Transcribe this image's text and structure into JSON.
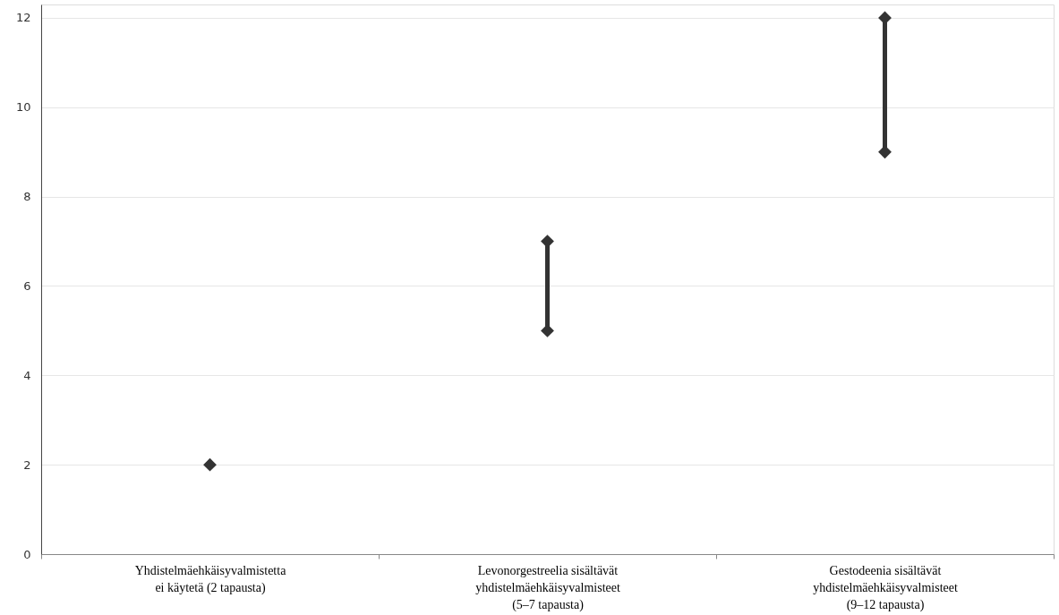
{
  "chart_data": {
    "type": "scatter",
    "categories": [
      "Yhdistelmäehkäisyvalmistetta\nei käytetä (2 tapausta)",
      "Levonorgestreelia sisältävät\nyhdistelmäehkäisyvalmisteet\n(5–7 tapausta)",
      "Gestodeenia sisältävät\nyhdistelmäehkäisyvalmisteet\n(9–12 tapausta)"
    ],
    "series": [
      {
        "type": "bar",
        "color": "#333333",
        "base": [
          null,
          5,
          9
        ],
        "values": [
          null,
          2,
          3
        ]
      },
      {
        "color": "#333333",
        "values": [
          2,
          5,
          9
        ]
      },
      {
        "color": "#333333",
        "values": [
          null,
          7,
          12
        ]
      }
    ],
    "ylim": [
      0,
      12.3
    ],
    "yticks": [
      0,
      2,
      4,
      6,
      8,
      10,
      12
    ],
    "grid": "y",
    "marker": "diamond"
  }
}
